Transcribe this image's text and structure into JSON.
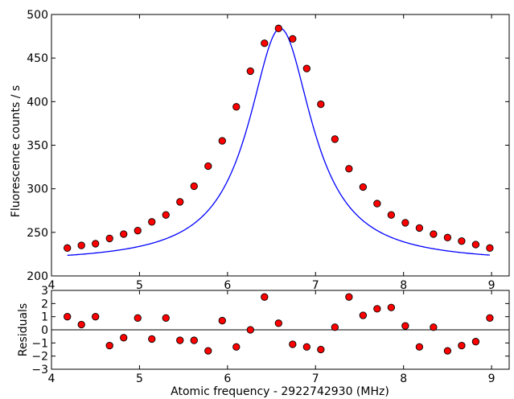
{
  "chart_data": [
    {
      "type": "scatter",
      "ylabel": "Fluorescence counts / s",
      "xlabel": "",
      "xlim": [
        4,
        9.2
      ],
      "ylim": [
        200,
        500
      ],
      "grid": false,
      "xticks": [
        "4",
        "5",
        "6",
        "7",
        "8",
        "9"
      ],
      "yticks": [
        "200",
        "250",
        "300",
        "350",
        "400",
        "450",
        "500"
      ],
      "colors": {
        "points": "#ff0000",
        "fit": "#0000ff"
      },
      "fit_curve": "lorentzian",
      "series": [
        {
          "x": [
            4.18,
            4.34,
            4.5,
            4.66,
            4.82,
            4.98,
            5.14,
            5.3,
            5.46,
            5.62,
            5.78,
            5.94,
            6.1,
            6.26,
            6.42,
            6.58,
            6.74,
            6.9,
            7.06,
            7.22,
            7.38,
            7.54,
            7.7,
            7.86,
            8.02,
            8.18,
            8.34,
            8.5,
            8.66,
            8.82,
            8.98
          ],
          "y": [
            232,
            235,
            237,
            243,
            248,
            252,
            262,
            270,
            285,
            303,
            326,
            355,
            394,
            435,
            467,
            484,
            472,
            438,
            397,
            357,
            323,
            302,
            283,
            270,
            261,
            255,
            248,
            244,
            240,
            236,
            232
          ]
        }
      ]
    },
    {
      "type": "scatter",
      "ylabel": "Residuals",
      "xlabel": "Atomic frequency - 2922742930 (MHz)",
      "xlim": [
        4,
        9.2
      ],
      "ylim": [
        -3,
        3
      ],
      "grid": false,
      "xticks": [
        "4",
        "5",
        "6",
        "7",
        "8",
        "9"
      ],
      "yticks": [
        "−3",
        "−2",
        "−1",
        "0",
        "1",
        "2",
        "3"
      ],
      "colors": {
        "points": "#ff0000"
      },
      "series": [
        {
          "x": [
            4.18,
            4.34,
            4.5,
            4.66,
            4.82,
            4.98,
            5.14,
            5.3,
            5.46,
            5.62,
            5.78,
            5.94,
            6.1,
            6.26,
            6.42,
            6.58,
            6.74,
            6.9,
            7.06,
            7.22,
            7.38,
            7.54,
            7.7,
            7.86,
            8.02,
            8.18,
            8.34,
            8.5,
            8.66,
            8.82,
            8.98
          ],
          "y": [
            1.0,
            0.4,
            1.0,
            -1.2,
            -0.6,
            0.9,
            -0.7,
            0.9,
            -0.8,
            -0.8,
            -1.6,
            0.7,
            -1.3,
            0.0,
            2.5,
            0.5,
            -1.1,
            -1.3,
            -1.5,
            0.2,
            2.5,
            1.1,
            1.6,
            1.7,
            0.3,
            -1.3,
            0.2,
            -1.6,
            -1.2,
            -0.9,
            0.9
          ]
        }
      ]
    }
  ]
}
